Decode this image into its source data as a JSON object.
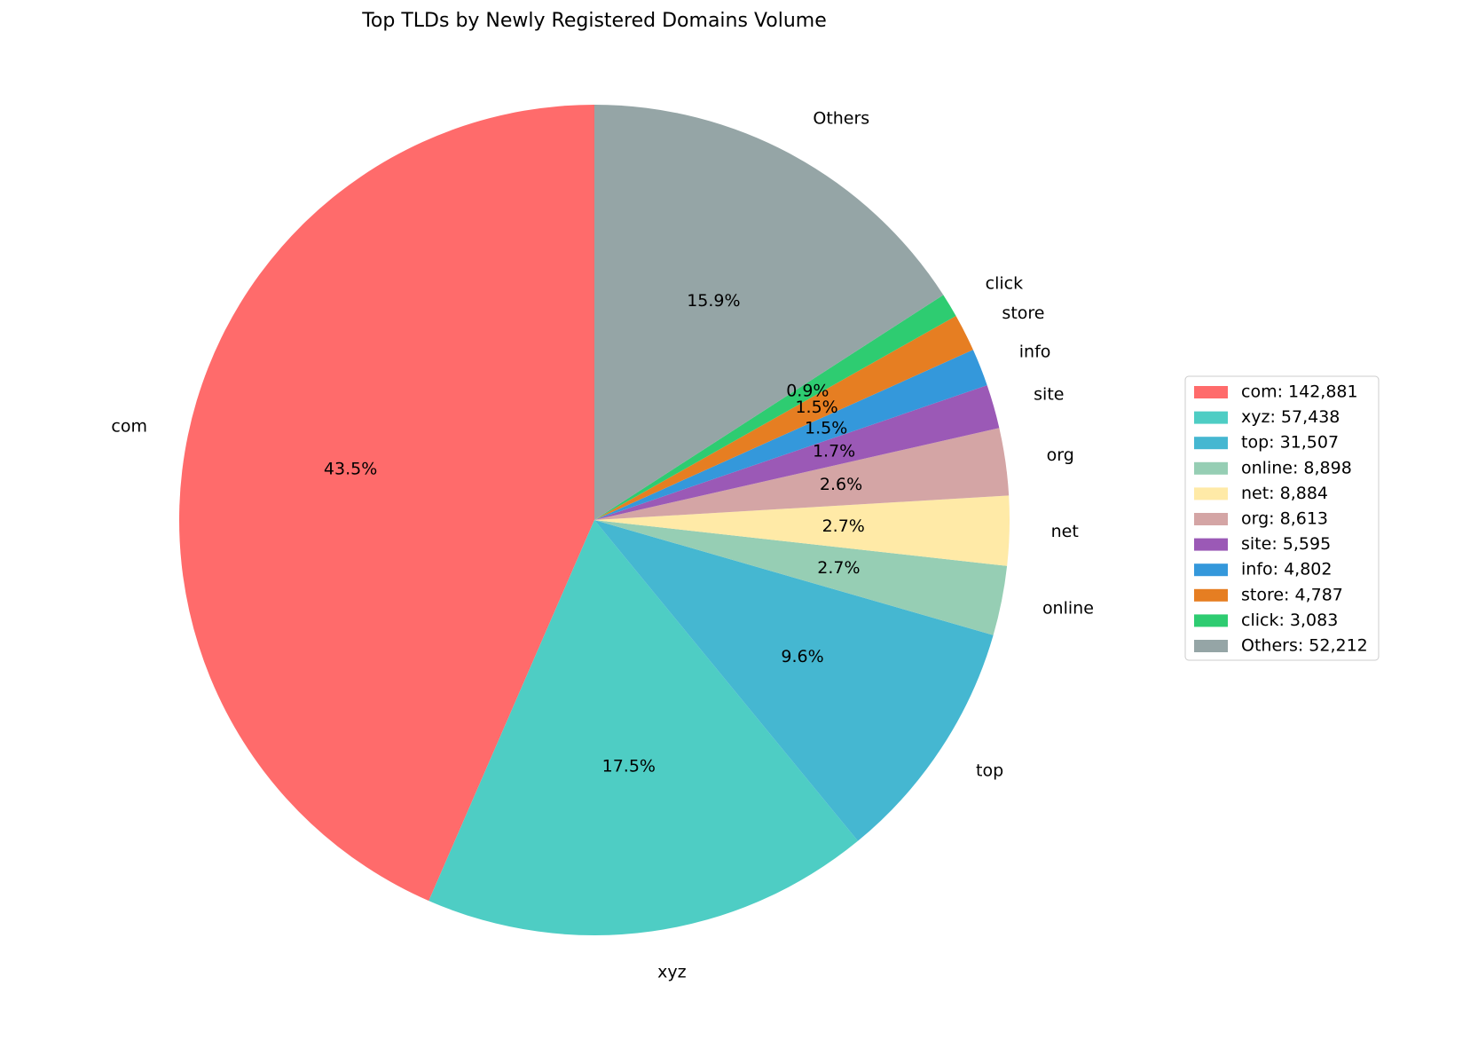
{
  "chart_data": {
    "type": "pie",
    "title": "Top TLDs by Newly Registered Domains Volume",
    "categories": [
      "com",
      "xyz",
      "top",
      "online",
      "net",
      "org",
      "site",
      "info",
      "store",
      "click",
      "Others"
    ],
    "values": [
      142881,
      57438,
      31507,
      8898,
      8884,
      8613,
      5595,
      4802,
      4787,
      3083,
      52212
    ],
    "percent_labels": [
      "43.5%",
      "17.5%",
      "9.6%",
      "2.7%",
      "2.7%",
      "2.6%",
      "1.7%",
      "1.5%",
      "1.5%",
      "0.9%",
      "15.9%"
    ],
    "legend_labels": [
      "com: 142,881",
      "xyz: 57,438",
      "top: 31,507",
      "online: 8,898",
      "net: 8,884",
      "org: 8,613",
      "site: 5,595",
      "info: 4,802",
      "store: 4,787",
      "click: 3,083",
      "Others: 52,212"
    ],
    "colors": [
      "#ff6b6b",
      "#4ecdc4",
      "#45b7d1",
      "#96ceb4",
      "#ffeaa7",
      "#d4a5a5",
      "#9b59b6",
      "#3498db",
      "#e67e22",
      "#2ecc71",
      "#95a5a6"
    ],
    "start_angle": 90,
    "counterclockwise": true,
    "legend": "right"
  }
}
